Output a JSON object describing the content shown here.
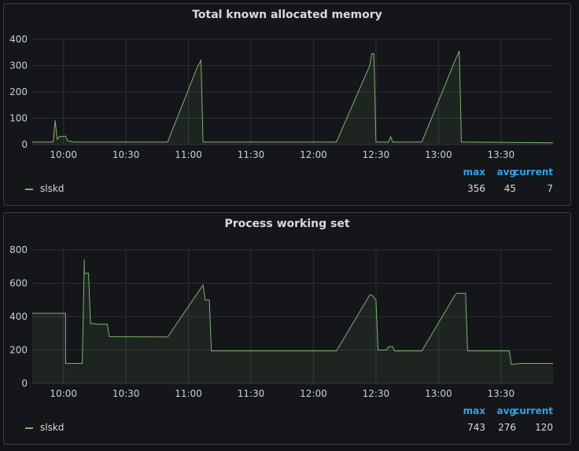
{
  "colors": {
    "series": "#7eb26d",
    "header": "#33a2e5",
    "grid": "#2c3035"
  },
  "chart_data": [
    {
      "type": "area",
      "title": "Total known allocated memory",
      "x_ticks": [
        "10:00",
        "10:30",
        "11:00",
        "11:30",
        "12:00",
        "12:30",
        "13:00",
        "13:30"
      ],
      "y_ticks": [
        "400",
        "300",
        "200",
        "100",
        "0"
      ],
      "ylim": [
        0,
        400
      ],
      "xlim": [
        "09:45",
        "13:55"
      ],
      "grid": true,
      "legend": {
        "placement": "bottom",
        "max_label": "max",
        "avg_label": "avg",
        "current_label": "current"
      },
      "series": [
        {
          "name": "slskd",
          "max": "356",
          "avg": "45",
          "current": "7",
          "points": [
            [
              "09:45",
              10
            ],
            [
              "09:55",
              10
            ],
            [
              "09:56",
              92
            ],
            [
              "09:57",
              20
            ],
            [
              "09:58",
              30
            ],
            [
              "10:01",
              32
            ],
            [
              "10:02",
              14
            ],
            [
              "10:05",
              10
            ],
            [
              "10:50",
              10
            ],
            [
              "11:04",
              290
            ],
            [
              "11:06",
              320
            ],
            [
              "11:07",
              10
            ],
            [
              "12:11",
              10
            ],
            [
              "12:27",
              300
            ],
            [
              "12:28",
              345
            ],
            [
              "12:29",
              345
            ],
            [
              "12:30",
              10
            ],
            [
              "12:36",
              10
            ],
            [
              "12:37",
              30
            ],
            [
              "12:38",
              10
            ],
            [
              "12:52",
              10
            ],
            [
              "13:08",
              320
            ],
            [
              "13:10",
              356
            ],
            [
              "13:11",
              10
            ],
            [
              "13:55",
              7
            ]
          ]
        }
      ]
    },
    {
      "type": "area",
      "title": "Process working set",
      "x_ticks": [
        "10:00",
        "10:30",
        "11:00",
        "11:30",
        "12:00",
        "12:30",
        "13:00",
        "13:30"
      ],
      "y_ticks": [
        "800",
        "600",
        "400",
        "200",
        "0"
      ],
      "ylim": [
        0,
        800
      ],
      "xlim": [
        "09:45",
        "13:55"
      ],
      "grid": true,
      "legend": {
        "placement": "bottom",
        "max_label": "max",
        "avg_label": "avg",
        "current_label": "current"
      },
      "series": [
        {
          "name": "slskd",
          "max": "743",
          "avg": "276",
          "current": "120",
          "points": [
            [
              "09:45",
              420
            ],
            [
              "10:01",
              420
            ],
            [
              "10:01",
              120
            ],
            [
              "10:09",
              120
            ],
            [
              "10:10",
              743
            ],
            [
              "10:10",
              660
            ],
            [
              "10:12",
              660
            ],
            [
              "10:13",
              360
            ],
            [
              "10:16",
              355
            ],
            [
              "10:21",
              355
            ],
            [
              "10:22",
              280
            ],
            [
              "10:50",
              278
            ],
            [
              "11:07",
              590
            ],
            [
              "11:08",
              500
            ],
            [
              "11:10",
              500
            ],
            [
              "11:11",
              195
            ],
            [
              "12:11",
              195
            ],
            [
              "12:27",
              530
            ],
            [
              "12:28",
              530
            ],
            [
              "12:30",
              500
            ],
            [
              "12:31",
              200
            ],
            [
              "12:35",
              200
            ],
            [
              "12:36",
              220
            ],
            [
              "12:38",
              220
            ],
            [
              "12:39",
              195
            ],
            [
              "12:52",
              195
            ],
            [
              "13:08",
              530
            ],
            [
              "13:09",
              540
            ],
            [
              "13:13",
              540
            ],
            [
              "13:14",
              195
            ],
            [
              "13:34",
              195
            ],
            [
              "13:35",
              115
            ],
            [
              "13:40",
              120
            ],
            [
              "13:55",
              120
            ]
          ]
        }
      ]
    }
  ]
}
